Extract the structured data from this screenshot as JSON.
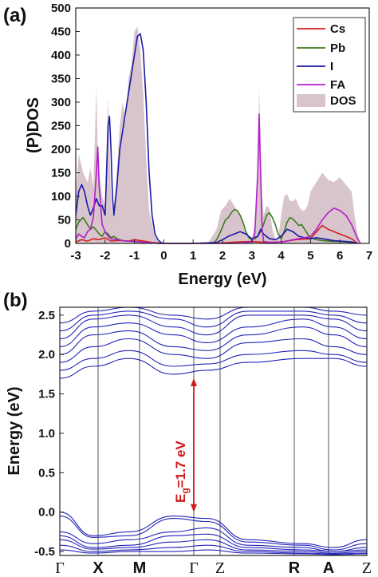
{
  "chart_data": [
    {
      "panel": "(a)",
      "type": "area",
      "xlabel": "Energy (eV)",
      "ylabel": "(P)DOS",
      "xlim": [
        -3,
        7
      ],
      "ylim": [
        0,
        500
      ],
      "xticks": [
        -3,
        -2,
        -1,
        0,
        1,
        2,
        3,
        4,
        5,
        6,
        7
      ],
      "yticks": [
        0,
        50,
        100,
        150,
        200,
        250,
        300,
        350,
        400,
        450,
        500
      ],
      "legend_position": "top-right",
      "colors": {
        "Cs": "#d42020",
        "Pb": "#3d7a1f",
        "I": "#1a1aa8",
        "FA": "#b21fc9",
        "DOS": "#d8c4cc"
      },
      "series": [
        {
          "name": "DOS",
          "style": "filled",
          "x": [
            -3,
            -2.9,
            -2.75,
            -2.6,
            -2.5,
            -2.4,
            -2.3,
            -2.25,
            -2.2,
            -2.1,
            -2.0,
            -1.95,
            -1.9,
            -1.8,
            -1.75,
            -1.7,
            -1.6,
            -1.5,
            -1.4,
            -1.3,
            -1.2,
            -1.1,
            -1.0,
            -0.9,
            -0.8,
            -0.7,
            -0.6,
            -0.5,
            -0.4,
            -0.3,
            -0.2,
            -0.05,
            0.5,
            1.5,
            1.8,
            1.95,
            2.1,
            2.25,
            2.4,
            2.5,
            2.6,
            2.7,
            2.8,
            2.9,
            3.0,
            3.1,
            3.2,
            3.25,
            3.3,
            3.35,
            3.4,
            3.5,
            3.6,
            3.7,
            3.8,
            3.9,
            4.0,
            4.1,
            4.2,
            4.3,
            4.4,
            4.5,
            4.6,
            4.7,
            4.8,
            4.9,
            5.0,
            5.2,
            5.4,
            5.6,
            5.8,
            6.0,
            6.2,
            6.4,
            6.5,
            6.6,
            6.7
          ],
          "y": [
            100,
            190,
            150,
            130,
            160,
            120,
            330,
            200,
            150,
            100,
            80,
            200,
            310,
            100,
            60,
            80,
            150,
            250,
            300,
            260,
            350,
            380,
            450,
            460,
            410,
            320,
            180,
            70,
            40,
            15,
            5,
            0,
            0,
            0,
            30,
            70,
            80,
            95,
            80,
            70,
            60,
            40,
            20,
            10,
            10,
            40,
            150,
            330,
            200,
            100,
            60,
            80,
            75,
            30,
            10,
            10,
            60,
            100,
            105,
            90,
            90,
            95,
            80,
            70,
            70,
            80,
            110,
            130,
            150,
            135,
            130,
            140,
            125,
            110,
            60,
            20,
            0
          ]
        },
        {
          "name": "Cs",
          "x": [
            -3,
            -2.8,
            -2.6,
            -2.4,
            -2.2,
            -2.0,
            -1.8,
            -1.6,
            -1.4,
            -1.2,
            -1.0,
            -0.8,
            -0.6,
            -0.4,
            -0.2,
            0,
            1,
            2,
            2.5,
            3,
            3.5,
            4,
            4.5,
            5.0,
            5.2,
            5.4,
            5.6,
            5.8,
            6.0,
            6.2,
            6.4,
            6.6
          ],
          "y": [
            3,
            8,
            5,
            10,
            8,
            12,
            5,
            6,
            6,
            5,
            8,
            6,
            4,
            2,
            1,
            0,
            0,
            1,
            3,
            4,
            2,
            3,
            8,
            10,
            25,
            38,
            30,
            25,
            20,
            15,
            10,
            0
          ]
        },
        {
          "name": "Pb",
          "x": [
            -3,
            -2.9,
            -2.75,
            -2.6,
            -2.5,
            -2.4,
            -2.3,
            -2.2,
            -2.1,
            -2.0,
            -1.9,
            -1.8,
            -1.7,
            -1.6,
            -1.5,
            -1.4,
            -1.3,
            -1.2,
            -1.0,
            -0.8,
            -0.6,
            -0.4,
            -0.2,
            0,
            1,
            1.7,
            1.8,
            1.9,
            2.0,
            2.1,
            2.2,
            2.3,
            2.4,
            2.5,
            2.6,
            2.7,
            2.8,
            2.9,
            3.0,
            3.1,
            3.2,
            3.3,
            3.4,
            3.5,
            3.6,
            3.7,
            3.8,
            3.9,
            4.0,
            4.1,
            4.2,
            4.3,
            4.4,
            4.5,
            4.6,
            4.7,
            4.8,
            4.9,
            5.0,
            5.2,
            5.4,
            5.6,
            5.8,
            6.0,
            6.2,
            6.4,
            6.6
          ],
          "y": [
            30,
            45,
            55,
            40,
            30,
            35,
            28,
            20,
            15,
            25,
            20,
            12,
            15,
            10,
            8,
            6,
            5,
            5,
            4,
            3,
            2,
            1,
            0,
            0,
            0,
            0,
            8,
            20,
            35,
            50,
            55,
            65,
            72,
            70,
            60,
            45,
            25,
            12,
            8,
            10,
            15,
            25,
            40,
            60,
            65,
            55,
            40,
            20,
            10,
            25,
            45,
            55,
            52,
            45,
            38,
            40,
            30,
            20,
            12,
            8,
            6,
            5,
            4,
            4,
            3,
            2,
            0
          ]
        },
        {
          "name": "I",
          "x": [
            -3,
            -2.9,
            -2.8,
            -2.7,
            -2.6,
            -2.5,
            -2.4,
            -2.3,
            -2.2,
            -2.1,
            -2.0,
            -1.95,
            -1.9,
            -1.85,
            -1.8,
            -1.75,
            -1.7,
            -1.6,
            -1.5,
            -1.4,
            -1.3,
            -1.2,
            -1.1,
            -1.0,
            -0.9,
            -0.8,
            -0.7,
            -0.6,
            -0.5,
            -0.4,
            -0.3,
            -0.2,
            -0.1,
            0,
            1,
            1.8,
            2.0,
            2.2,
            2.4,
            2.6,
            2.8,
            3.0,
            3.2,
            3.3,
            3.4,
            3.6,
            3.8,
            4.0,
            4.2,
            4.4,
            4.6,
            4.8,
            5.0,
            5.2,
            5.4,
            5.6,
            5.8,
            6.0,
            6.2,
            6.4,
            6.6
          ],
          "y": [
            60,
            110,
            125,
            110,
            80,
            60,
            75,
            95,
            80,
            80,
            60,
            150,
            250,
            270,
            200,
            100,
            60,
            120,
            200,
            240,
            280,
            320,
            360,
            400,
            440,
            445,
            410,
            300,
            150,
            60,
            20,
            8,
            2,
            0,
            0,
            2,
            8,
            15,
            20,
            25,
            20,
            10,
            15,
            30,
            20,
            10,
            8,
            15,
            30,
            25,
            15,
            12,
            10,
            12,
            10,
            8,
            6,
            5,
            4,
            3,
            0
          ]
        },
        {
          "name": "FA",
          "x": [
            -3,
            -2.9,
            -2.8,
            -2.7,
            -2.6,
            -2.5,
            -2.4,
            -2.3,
            -2.25,
            -2.2,
            -2.1,
            -2.0,
            -1.9,
            -1.8,
            -1.6,
            -1.4,
            -1.2,
            -1.0,
            -0.8,
            -0.6,
            -0.4,
            -0.2,
            0,
            1,
            2,
            2.5,
            3.0,
            3.1,
            3.2,
            3.25,
            3.3,
            3.35,
            3.4,
            3.5,
            3.7,
            4.0,
            4.2,
            4.4,
            4.6,
            4.8,
            5.0,
            5.2,
            5.4,
            5.6,
            5.8,
            6.0,
            6.2,
            6.4,
            6.6,
            6.7
          ],
          "y": [
            10,
            20,
            15,
            12,
            25,
            30,
            55,
            150,
            205,
            120,
            40,
            25,
            15,
            10,
            8,
            6,
            5,
            4,
            3,
            2,
            1,
            0,
            0,
            0,
            0,
            0,
            3,
            20,
            150,
            275,
            150,
            30,
            5,
            3,
            2,
            3,
            5,
            8,
            10,
            12,
            15,
            30,
            50,
            65,
            75,
            70,
            60,
            40,
            10,
            0
          ]
        }
      ],
      "legend": [
        "Cs",
        "Pb",
        "I",
        "FA",
        "DOS"
      ]
    },
    {
      "panel": "(b)",
      "type": "line",
      "ylabel": "Energy (eV)",
      "ylim": [
        -0.55,
        2.6
      ],
      "yticks": [
        -0.5,
        0.0,
        0.5,
        1.0,
        1.5,
        2.0,
        2.5
      ],
      "x_kpoints": [
        "Γ",
        "X",
        "M",
        "Γ",
        "Z",
        "R",
        "A",
        "Z"
      ],
      "band_color": "#2424b8",
      "gap_annotation": "E",
      "gap_subscript": "g",
      "gap_value_text": "=1.7 eV",
      "gap_color": "#d11919",
      "vbm": 0.0,
      "cbm": 1.7,
      "vbm_segment": "Γ",
      "valence_bands": [
        [
          0.0,
          -0.3,
          -0.25,
          -0.05,
          -0.08,
          -0.35,
          -0.4,
          -0.45,
          -0.35
        ],
        [
          -0.05,
          -0.32,
          -0.3,
          -0.08,
          -0.12,
          -0.38,
          -0.42,
          -0.48,
          -0.4
        ],
        [
          -0.25,
          -0.4,
          -0.35,
          -0.25,
          -0.2,
          -0.42,
          -0.45,
          -0.5,
          -0.45
        ],
        [
          -0.3,
          -0.45,
          -0.42,
          -0.3,
          -0.28,
          -0.45,
          -0.48,
          -0.5,
          -0.48
        ],
        [
          -0.35,
          -0.47,
          -0.45,
          -0.38,
          -0.35,
          -0.48,
          -0.5,
          -0.52,
          -0.5
        ],
        [
          -0.42,
          -0.5,
          -0.48,
          -0.45,
          -0.42,
          -0.5,
          -0.52,
          -0.53,
          -0.52
        ],
        [
          -0.48,
          -0.52,
          -0.5,
          -0.5,
          -0.48,
          -0.52,
          -0.53,
          -0.54,
          -0.53
        ]
      ],
      "conduction_bands": [
        [
          1.7,
          1.85,
          1.95,
          1.75,
          1.8,
          1.9,
          1.95,
          1.95,
          1.85
        ],
        [
          1.8,
          1.95,
          2.05,
          1.85,
          1.88,
          2.0,
          2.05,
          2.0,
          1.9
        ],
        [
          1.9,
          2.1,
          2.2,
          2.0,
          1.95,
          2.15,
          2.2,
          2.1,
          2.0
        ],
        [
          2.0,
          2.25,
          2.3,
          2.1,
          2.05,
          2.25,
          2.35,
          2.25,
          2.1
        ],
        [
          2.1,
          2.35,
          2.4,
          2.25,
          2.15,
          2.35,
          2.45,
          2.35,
          2.2
        ],
        [
          2.2,
          2.45,
          2.5,
          2.35,
          2.25,
          2.5,
          2.5,
          2.45,
          2.3
        ],
        [
          2.3,
          2.5,
          2.55,
          2.45,
          2.35,
          2.55,
          2.55,
          2.5,
          2.4
        ],
        [
          2.4,
          2.55,
          2.6,
          2.5,
          2.45,
          2.6,
          2.6,
          2.55,
          2.5
        ]
      ]
    }
  ]
}
